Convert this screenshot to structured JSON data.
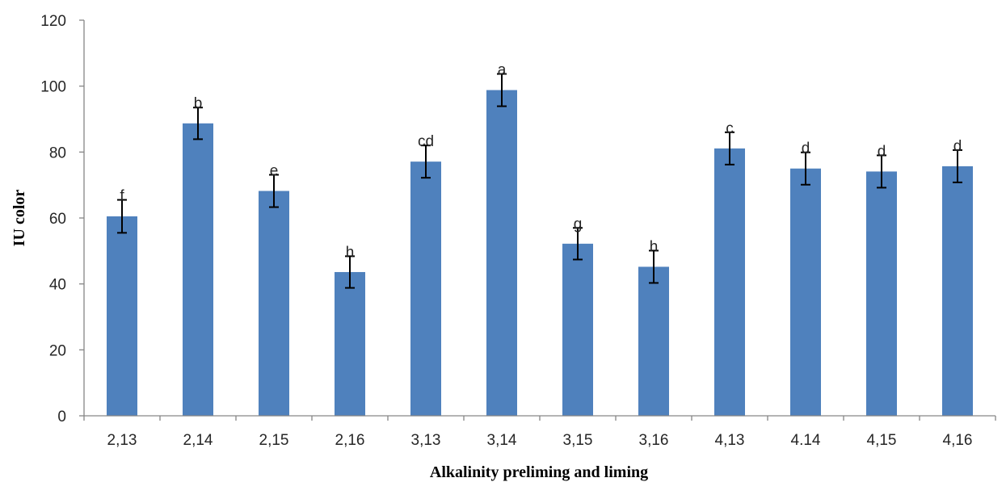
{
  "chart_data": {
    "type": "bar",
    "categories": [
      "2,13",
      "2,14",
      "2,15",
      "2,16",
      "3,13",
      "3,14",
      "3,15",
      "3,16",
      "4,13",
      "4.14",
      "4,15",
      "4,16"
    ],
    "values": [
      60.5,
      88.7,
      68.2,
      43.6,
      77.1,
      98.8,
      52.2,
      45.2,
      81.1,
      75.0,
      74.1,
      75.7
    ],
    "errors": [
      5.0,
      4.8,
      4.9,
      4.8,
      4.9,
      4.9,
      4.8,
      4.9,
      4.9,
      4.9,
      4.9,
      4.9
    ],
    "data_labels": [
      "f",
      "b",
      "e",
      "h",
      "cd",
      "a",
      "g",
      "h",
      "c",
      "d",
      "d",
      "d"
    ],
    "xlabel": "Alkalinity  preliming  and liming",
    "ylabel": "IU color",
    "ylim": [
      0,
      120
    ],
    "yticks": [
      "0",
      "20",
      "40",
      "60",
      "80",
      "100",
      "120"
    ],
    "grid": false,
    "bar_color": "#4F81BD",
    "error_bar_color": "#000000",
    "axis_color": "#868686"
  }
}
